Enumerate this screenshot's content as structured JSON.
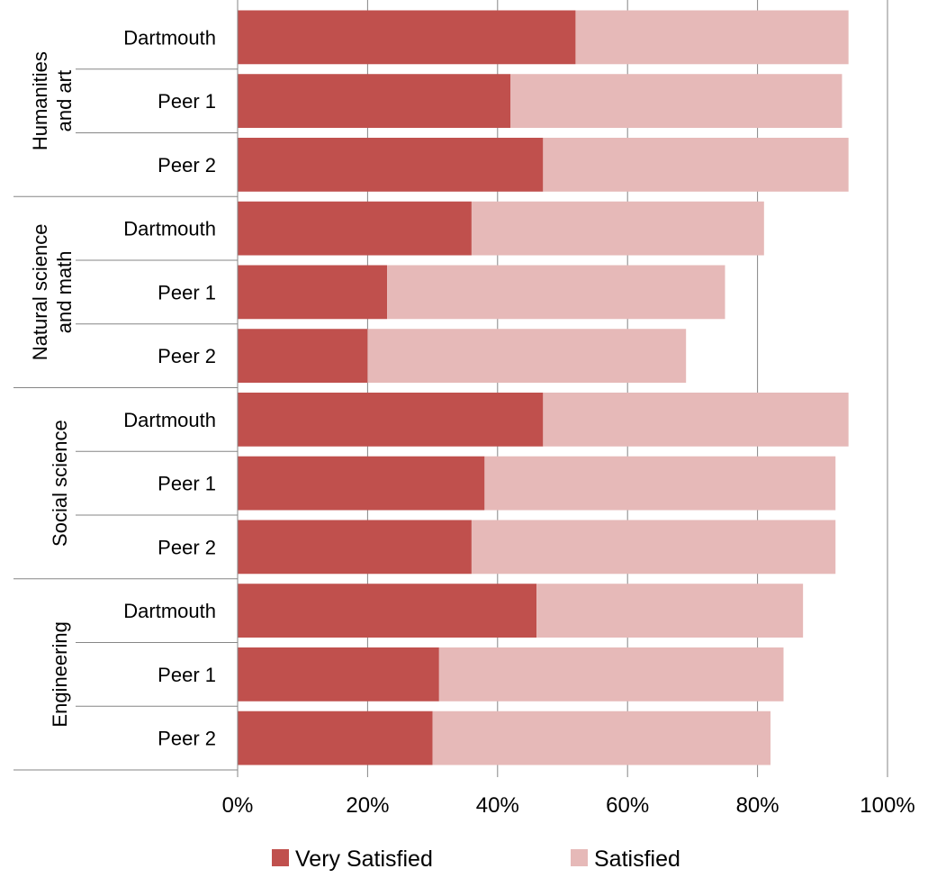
{
  "chart_data": {
    "type": "bar",
    "orientation": "horizontal",
    "stacked": true,
    "title": "",
    "xlabel": "",
    "ylabel": "",
    "xlim": [
      0,
      100
    ],
    "x_ticks": [
      "0%",
      "20%",
      "40%",
      "60%",
      "80%",
      "100%"
    ],
    "x_tick_values": [
      0,
      20,
      40,
      60,
      80,
      100
    ],
    "grid": "vertical",
    "legend_position": "bottom",
    "groups": [
      {
        "name": "Humanities and art",
        "categories": [
          "Dartmouth",
          "Peer 1",
          "Peer 2"
        ]
      },
      {
        "name": "Natural science and math",
        "categories": [
          "Dartmouth",
          "Peer 1",
          "Peer 2"
        ]
      },
      {
        "name": "Social science",
        "categories": [
          "Dartmouth",
          "Peer 1",
          "Peer 2"
        ]
      },
      {
        "name": "Engineering",
        "categories": [
          "Dartmouth",
          "Peer 1",
          "Peer 2"
        ]
      }
    ],
    "series": [
      {
        "name": "Very Satisfied",
        "color": "#c0504d",
        "values": [
          52,
          42,
          47,
          36,
          23,
          20,
          47,
          38,
          36,
          46,
          31,
          30
        ]
      },
      {
        "name": "Satisfied",
        "color": "#e6b9b8",
        "values": [
          42,
          51,
          47,
          45,
          52,
          49,
          47,
          54,
          56,
          41,
          53,
          52
        ]
      }
    ]
  }
}
